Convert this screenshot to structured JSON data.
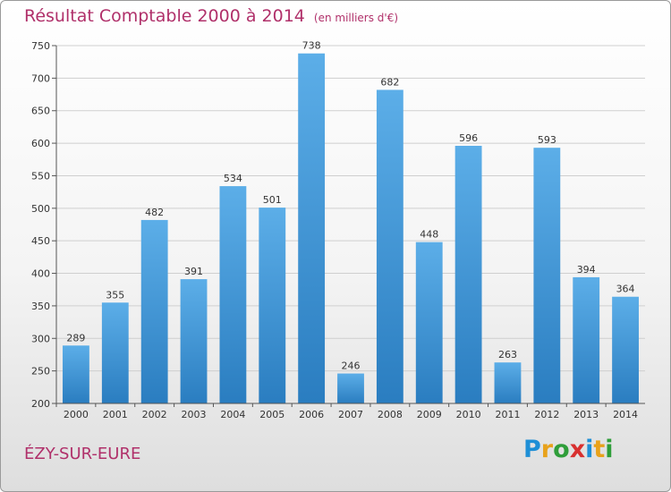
{
  "header": {
    "title": "Résultat Comptable 2000 à 2014",
    "subtitle": "(en milliers d'€)"
  },
  "footer": {
    "place": "ÉZY-SUR-EURE",
    "logo": {
      "letters": [
        "P",
        "r",
        "o",
        "x",
        "i",
        "t",
        "i"
      ],
      "colors": [
        "#1e8fd6",
        "#e8a21b",
        "#2f9e3a",
        "#d8302f",
        "#1e8fd6",
        "#e8a21b",
        "#2f9e3a"
      ]
    }
  },
  "colors": {
    "bar_top": "#5caee8",
    "bar_bottom": "#2a7dc0",
    "grid": "#cfcfcf",
    "axis": "#555555",
    "accent": "#b0306a"
  },
  "chart_data": {
    "type": "bar",
    "categories": [
      "2000",
      "2001",
      "2002",
      "2003",
      "2004",
      "2005",
      "2006",
      "2007",
      "2008",
      "2009",
      "2010",
      "2011",
      "2012",
      "2013",
      "2014"
    ],
    "values": [
      289,
      355,
      482,
      391,
      534,
      501,
      738,
      246,
      682,
      448,
      596,
      263,
      593,
      394,
      364
    ],
    "ylim": [
      200,
      750
    ],
    "yticks": [
      200,
      250,
      300,
      350,
      400,
      450,
      500,
      550,
      600,
      650,
      700,
      750
    ],
    "grid": true,
    "legend": "none"
  }
}
